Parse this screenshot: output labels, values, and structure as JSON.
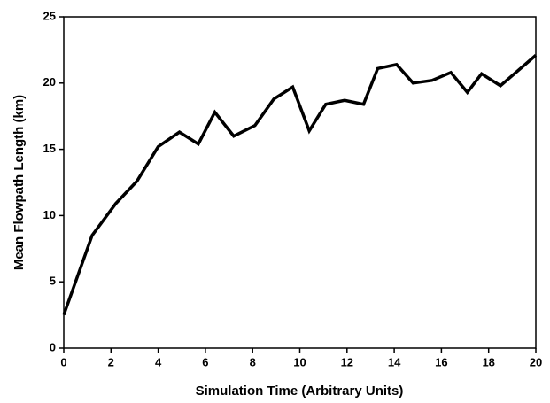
{
  "chart_data": {
    "type": "line",
    "xlabel": "Simulation Time (Arbitrary Units)",
    "ylabel": "Mean Flowpath Length (km)",
    "x": [
      0,
      1.2,
      2.2,
      3.1,
      4.0,
      4.9,
      5.7,
      6.4,
      7.2,
      8.1,
      8.9,
      9.7,
      10.4,
      11.1,
      11.9,
      12.7,
      13.3,
      14.1,
      14.8,
      15.6,
      16.4,
      17.1,
      17.7,
      18.5,
      20
    ],
    "series": [
      {
        "name": "Mean Flowpath Length",
        "color": "#000000",
        "values": [
          2.5,
          8.5,
          10.9,
          12.6,
          15.2,
          16.3,
          15.4,
          17.8,
          16.0,
          16.8,
          18.8,
          19.7,
          16.4,
          18.4,
          18.7,
          18.4,
          21.1,
          21.4,
          20.0,
          20.2,
          20.8,
          19.3,
          20.7,
          19.8,
          22.1
        ]
      }
    ],
    "xlim": [
      0,
      20
    ],
    "xticks": [
      0,
      2,
      4,
      6,
      8,
      10,
      12,
      14,
      16,
      18,
      20
    ],
    "ylim": [
      0,
      25
    ],
    "yticks": [
      0,
      5,
      10,
      15,
      20,
      25
    ],
    "grid": false
  }
}
